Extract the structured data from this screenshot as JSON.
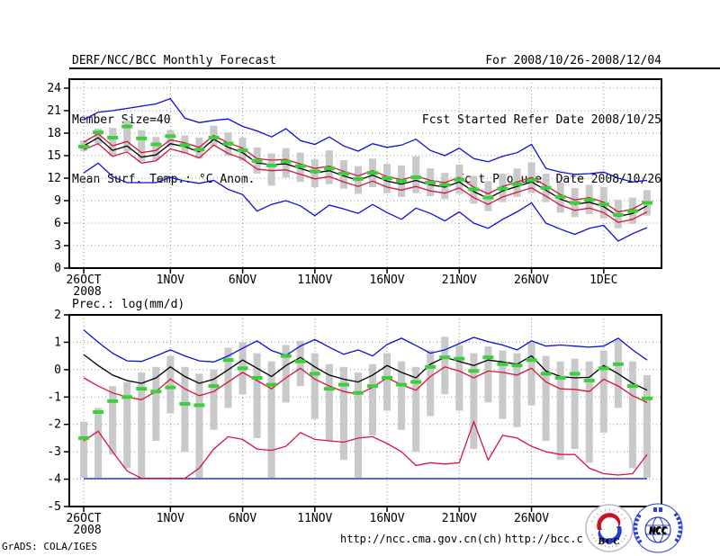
{
  "header": {
    "left": [
      "DERF/NCC/BCC Monthly Forecast",
      "Member Size=40",
      "Mean Surf. Temp.: °C Anom."
    ],
    "right": [
      "For 2008/10/26-2008/12/04",
      "Fcst Started Refer Date 2008/10/25",
      "Fcst Produced Date 2008/10/26"
    ]
  },
  "footer": {
    "grads_credit": "GrADS: COLA/IGES",
    "url_ncc": "http://ncc.cma.gov.cn(ch)",
    "url_bcc": "http://bcc.c"
  },
  "logos": {
    "bcc_label": "BCC",
    "ncc_label": "NCC"
  },
  "colors": {
    "max_min": "#0b10d8",
    "std_band": "#d8143c",
    "mean": "#000000",
    "median_marker": "#3bcf3b",
    "spread_bar": "#c9c9c9",
    "grid": "#909090",
    "frame": "#000000"
  },
  "chart_data": [
    {
      "type": "line",
      "title": "Mean Surf. Temp.: °C Anom.",
      "x_start_date": "2008-10-26",
      "x_end_date": "2008-12-04",
      "x_days": 40,
      "grid": true,
      "legend": "none",
      "ylim": [
        0,
        25.2
      ],
      "yticks": [
        "0",
        "3",
        "6",
        "9",
        "12",
        "15",
        "18",
        "21",
        "24"
      ],
      "ytick_values": [
        0,
        3,
        6,
        9,
        12,
        15,
        18,
        21,
        24
      ],
      "xticks": [
        {
          "label": "26OCT",
          "sublabel": "2008",
          "day": 0
        },
        {
          "label": "1NOV",
          "day": 6
        },
        {
          "label": "6NOV",
          "day": 11
        },
        {
          "label": "11NOV",
          "day": 16
        },
        {
          "label": "16NOV",
          "day": 21
        },
        {
          "label": "21NOV",
          "day": 26
        },
        {
          "label": "26NOV",
          "day": 31
        },
        {
          "label": "1DEC",
          "day": 36
        }
      ],
      "series": [
        {
          "name": "ensemble-max",
          "color": "#0b10d8",
          "values": [
            19.8,
            20.8,
            21.0,
            21.3,
            21.6,
            21.9,
            22.6,
            20.0,
            19.4,
            19.7,
            19.9,
            18.9,
            18.3,
            17.5,
            18.6,
            17.0,
            16.5,
            17.5,
            16.3,
            15.6,
            16.6,
            16.1,
            16.4,
            17.2,
            15.7,
            15.0,
            16.0,
            14.6,
            14.2,
            14.9,
            15.4,
            16.5,
            13.3,
            12.8,
            12.5,
            12.6,
            12.8,
            12.0,
            11.5,
            11.7
          ]
        },
        {
          "name": "mean-plus-sd",
          "color": "#d8143c",
          "values": [
            16.8,
            17.9,
            16.3,
            16.9,
            15.4,
            15.7,
            17.1,
            16.7,
            16.1,
            17.7,
            16.7,
            16.0,
            14.6,
            14.4,
            14.5,
            13.9,
            13.3,
            13.6,
            12.9,
            12.3,
            13.0,
            12.2,
            11.8,
            12.3,
            11.7,
            11.4,
            12.1,
            10.8,
            9.9,
            10.9,
            11.5,
            12.1,
            11.0,
            9.8,
            9.1,
            9.4,
            8.8,
            7.5,
            7.9,
            8.9
          ]
        },
        {
          "name": "ensemble-mean",
          "color": "#000000",
          "values": [
            16.3,
            17.4,
            15.7,
            16.3,
            14.8,
            15.1,
            16.6,
            16.2,
            15.5,
            17.2,
            16.1,
            15.4,
            14.0,
            13.8,
            13.9,
            13.3,
            12.7,
            13.0,
            12.3,
            11.7,
            12.4,
            11.6,
            11.2,
            11.7,
            11.1,
            10.8,
            11.5,
            10.2,
            9.3,
            10.3,
            10.9,
            11.5,
            10.4,
            9.2,
            8.5,
            8.8,
            8.2,
            6.9,
            7.3,
            8.3
          ]
        },
        {
          "name": "mean-minus-sd",
          "color": "#d8143c",
          "values": [
            15.8,
            16.6,
            14.9,
            15.5,
            14.0,
            14.3,
            15.9,
            15.4,
            14.7,
            16.4,
            15.3,
            14.6,
            13.2,
            13.0,
            13.1,
            12.5,
            11.9,
            12.2,
            11.5,
            10.9,
            11.6,
            10.8,
            10.4,
            10.9,
            10.3,
            10.0,
            10.7,
            9.4,
            8.5,
            9.5,
            10.1,
            10.7,
            9.6,
            8.4,
            7.7,
            8.0,
            7.4,
            6.1,
            6.5,
            7.5
          ]
        },
        {
          "name": "ensemble-min",
          "color": "#0b10d8",
          "values": [
            12.7,
            14.0,
            12.2,
            11.4,
            11.4,
            11.4,
            12.1,
            11.6,
            11.3,
            11.7,
            10.5,
            9.8,
            7.6,
            8.5,
            9.0,
            8.3,
            7.0,
            8.4,
            7.9,
            7.3,
            8.5,
            7.4,
            6.5,
            8.0,
            7.3,
            6.3,
            7.5,
            6.0,
            5.3,
            6.5,
            7.5,
            8.7,
            6.0,
            5.2,
            4.5,
            5.3,
            5.7,
            3.6,
            4.6,
            5.4
          ]
        }
      ],
      "bars": {
        "name": "ensemble-spread",
        "color": "#c9c9c9",
        "high": [
          17.0,
          18.6,
          18.7,
          19.7,
          18.4,
          17.5,
          18.4,
          17.7,
          17.4,
          19.0,
          18.1,
          17.4,
          16.1,
          15.3,
          16.0,
          15.4,
          14.5,
          15.7,
          14.4,
          13.6,
          14.6,
          13.9,
          13.7,
          14.9,
          13.3,
          12.7,
          13.8,
          12.3,
          11.6,
          12.6,
          13.3,
          14.1,
          12.6,
          11.4,
          10.7,
          11.1,
          10.8,
          9.1,
          9.4,
          10.4
        ],
        "low": [
          15.6,
          16.6,
          15.0,
          15.6,
          14.2,
          14.4,
          16.2,
          15.3,
          14.6,
          16.3,
          15.0,
          14.3,
          12.6,
          11.0,
          12.1,
          11.5,
          10.8,
          11.2,
          10.6,
          9.9,
          10.8,
          10.0,
          9.5,
          10.0,
          9.6,
          9.2,
          9.9,
          8.6,
          7.6,
          8.8,
          9.5,
          10.0,
          8.8,
          7.4,
          6.8,
          7.2,
          6.6,
          5.3,
          5.9,
          7.0
        ]
      },
      "markers": {
        "name": "median",
        "color": "#3bcf3b",
        "values": [
          16.2,
          18.1,
          17.4,
          18.9,
          17.3,
          16.5,
          17.6,
          16.4,
          15.8,
          17.4,
          16.6,
          15.7,
          14.3,
          13.7,
          14.2,
          13.6,
          12.9,
          13.3,
          12.6,
          11.9,
          12.7,
          12.0,
          11.6,
          12.1,
          11.4,
          11.1,
          11.8,
          10.5,
          9.4,
          10.6,
          11.2,
          11.7,
          10.7,
          9.5,
          8.7,
          9.1,
          8.5,
          7.1,
          7.6,
          8.7
        ]
      }
    },
    {
      "type": "line",
      "title": "Prec.: log(mm/d)",
      "x_start_date": "2008-10-26",
      "x_end_date": "2008-12-04",
      "x_days": 40,
      "grid": true,
      "legend": "none",
      "ylim": [
        -5,
        2
      ],
      "yticks": [
        "2",
        "1",
        "0",
        "-1",
        "-2",
        "-3",
        "-4",
        "-5"
      ],
      "ytick_values": [
        2,
        1,
        0,
        -1,
        -2,
        -3,
        -4,
        -5
      ],
      "xticks": [
        {
          "label": "26OCT",
          "sublabel": "2008",
          "day": 0
        },
        {
          "label": "1NOV",
          "day": 6
        },
        {
          "label": "6NOV",
          "day": 11
        },
        {
          "label": "11NOV",
          "day": 16
        },
        {
          "label": "16NOV",
          "day": 21
        },
        {
          "label": "21NOV",
          "day": 26
        },
        {
          "label": "26NOV",
          "day": 31
        },
        {
          "label": "1DEC",
          "day": 36
        }
      ],
      "series": [
        {
          "name": "ensemble-max",
          "color": "#0b10d8",
          "values": [
            1.45,
            1.0,
            0.6,
            0.32,
            0.3,
            0.5,
            0.72,
            0.5,
            0.32,
            0.28,
            0.5,
            0.78,
            1.05,
            0.7,
            0.52,
            0.86,
            1.1,
            0.82,
            0.56,
            0.72,
            0.5,
            0.92,
            1.15,
            0.88,
            0.6,
            0.72,
            0.95,
            1.18,
            1.02,
            0.9,
            0.72,
            1.05,
            0.86,
            0.9,
            0.86,
            0.82,
            0.86,
            1.15,
            0.72,
            0.35
          ]
        },
        {
          "name": "mean-plus-sd",
          "color": "#d8143c",
          "values": [
            -0.3,
            -0.6,
            -0.85,
            -1.0,
            -1.1,
            -0.8,
            -0.35,
            -0.7,
            -0.95,
            -0.8,
            -0.45,
            -0.1,
            -0.4,
            -0.7,
            -0.3,
            0.05,
            -0.35,
            -0.6,
            -0.8,
            -0.9,
            -0.65,
            -0.3,
            -0.55,
            -0.75,
            -0.25,
            0.1,
            -0.05,
            -0.3,
            -0.05,
            -0.1,
            -0.2,
            0.05,
            -0.45,
            -0.7,
            -0.72,
            -0.8,
            -0.35,
            -0.6,
            -0.95,
            -1.2
          ]
        },
        {
          "name": "ensemble-mean",
          "color": "#000000",
          "values": [
            0.55,
            0.15,
            -0.2,
            -0.4,
            -0.5,
            -0.3,
            0.1,
            -0.25,
            -0.5,
            -0.35,
            0.0,
            0.35,
            0.05,
            -0.25,
            0.15,
            0.45,
            0.1,
            -0.2,
            -0.35,
            -0.45,
            -0.2,
            0.15,
            -0.1,
            -0.3,
            0.2,
            0.45,
            0.3,
            0.15,
            0.35,
            0.28,
            0.2,
            0.5,
            -0.05,
            -0.25,
            -0.3,
            -0.28,
            0.15,
            -0.15,
            -0.5,
            -0.75
          ]
        },
        {
          "name": "mean-minus-sd",
          "color": "#d8143c",
          "values": [
            -2.6,
            -2.25,
            -3.0,
            -3.7,
            -3.97,
            -3.97,
            -3.97,
            -3.97,
            -3.6,
            -2.9,
            -2.45,
            -2.55,
            -2.9,
            -2.95,
            -2.8,
            -2.3,
            -2.55,
            -2.6,
            -2.65,
            -2.5,
            -2.45,
            -2.7,
            -3.0,
            -3.5,
            -3.4,
            -3.45,
            -3.4,
            -1.9,
            -3.3,
            -2.4,
            -2.5,
            -2.8,
            -3.0,
            -3.1,
            -3.1,
            -3.6,
            -3.8,
            -3.85,
            -3.8,
            -3.1
          ]
        },
        {
          "name": "ensemble-min",
          "color": "#0b10d8",
          "values": [
            -3.98,
            -3.98,
            -3.98,
            -3.98,
            -3.98,
            -3.98,
            -3.98,
            -3.98,
            -3.98,
            -3.98,
            -3.98,
            -3.98,
            -3.98,
            -3.98,
            -3.98,
            -3.98,
            -3.98,
            -3.98,
            -3.98,
            -3.98,
            -3.98,
            -3.98,
            -3.98,
            -3.98,
            -3.98,
            -3.98,
            -3.98,
            -3.98,
            -3.98,
            -3.98,
            -3.98,
            -3.98,
            -3.98,
            -3.98,
            -3.98,
            -3.98,
            -3.98,
            -3.98,
            -3.98,
            -3.98
          ]
        }
      ],
      "bars": {
        "name": "ensemble-spread",
        "color": "#c9c9c9",
        "high": [
          -1.9,
          -1.4,
          -0.6,
          -0.45,
          -0.1,
          0.1,
          0.5,
          0.1,
          -0.15,
          0.0,
          0.8,
          1.0,
          0.6,
          0.3,
          0.9,
          1.05,
          0.6,
          0.2,
          0.1,
          -0.1,
          0.2,
          0.6,
          0.3,
          0.1,
          0.7,
          1.2,
          0.9,
          0.6,
          0.85,
          0.7,
          0.6,
          1.0,
          0.5,
          0.3,
          0.4,
          0.3,
          0.7,
          1.1,
          0.3,
          -0.2
        ],
        "low": [
          -3.95,
          -3.95,
          -3.1,
          -3.6,
          -3.95,
          -2.6,
          -1.6,
          -3.0,
          -3.95,
          -2.2,
          -1.4,
          -0.9,
          -2.5,
          -3.95,
          -1.2,
          -0.6,
          -1.8,
          -2.6,
          -3.3,
          -3.95,
          -2.4,
          -1.5,
          -2.2,
          -3.0,
          -1.7,
          -0.9,
          -1.5,
          -2.9,
          -1.2,
          -1.8,
          -2.1,
          -1.3,
          -2.6,
          -3.3,
          -2.9,
          -3.4,
          -2.3,
          -1.4,
          -3.6,
          -3.95
        ]
      },
      "markers": {
        "name": "median",
        "color": "#3bcf3b",
        "values": [
          -2.5,
          -1.55,
          -1.15,
          -1.0,
          -0.7,
          -0.8,
          -0.65,
          -1.25,
          -1.3,
          -0.6,
          0.35,
          0.05,
          -0.3,
          -0.55,
          0.5,
          0.3,
          -0.15,
          -0.7,
          -0.55,
          -0.85,
          -0.6,
          -0.3,
          -0.55,
          -0.45,
          0.1,
          0.45,
          0.4,
          -0.05,
          0.45,
          0.2,
          0.15,
          0.35,
          -0.15,
          -0.3,
          -0.15,
          -0.4,
          0.05,
          0.2,
          -0.6,
          -1.05
        ]
      }
    }
  ]
}
